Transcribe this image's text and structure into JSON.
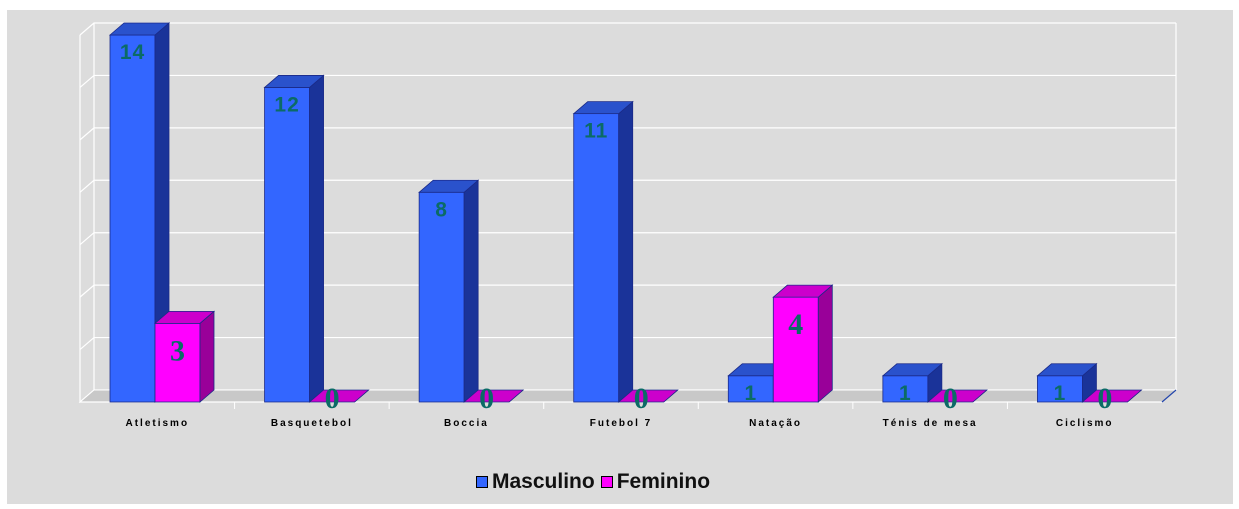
{
  "colors": {
    "masculino": "#3366ff",
    "masculino_side": "#1a3399",
    "masculino_top": "#2a52cc",
    "feminino": "#ff00ff",
    "feminino_side": "#990099",
    "feminino_top": "#cc00cc",
    "plot_bg": "#dcdcdc",
    "grid": "#ffffff",
    "value_label": "#0b6b66"
  },
  "chart_data": {
    "type": "bar",
    "categories": [
      "Atletismo",
      "Basquetebol",
      "Boccia",
      "Futebol 7",
      "Natação",
      "Ténis de mesa",
      "Ciclismo"
    ],
    "series": [
      {
        "name": "Masculino",
        "values": [
          14,
          12,
          8,
          11,
          1,
          1,
          1
        ]
      },
      {
        "name": "Feminino",
        "values": [
          3,
          0,
          0,
          0,
          4,
          0,
          0
        ]
      }
    ],
    "ylim": [
      0,
      14
    ],
    "grid": true,
    "legend_position": "bottom",
    "data_labels": true,
    "three_d": true
  }
}
